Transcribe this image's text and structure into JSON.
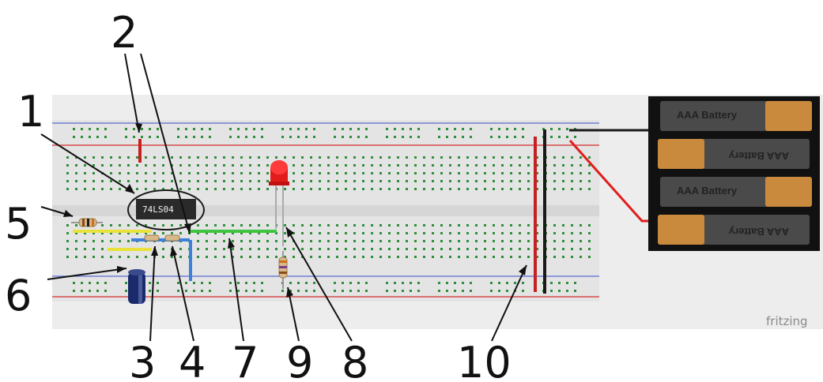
{
  "callouts": [
    {
      "id": "1",
      "label": "1"
    },
    {
      "id": "2",
      "label": "2"
    },
    {
      "id": "3",
      "label": "3"
    },
    {
      "id": "4",
      "label": "4"
    },
    {
      "id": "5",
      "label": "5"
    },
    {
      "id": "6",
      "label": "6"
    },
    {
      "id": "7",
      "label": "7"
    },
    {
      "id": "8",
      "label": "8"
    },
    {
      "id": "9",
      "label": "9"
    },
    {
      "id": "10",
      "label": "10"
    }
  ],
  "chip": {
    "label": "74LS04"
  },
  "batteries": [
    {
      "label": "AAA Battery"
    },
    {
      "label": "AAA Battery"
    },
    {
      "label": "AAA Battery"
    },
    {
      "label": "AAA Battery"
    }
  ],
  "watermark": "fritzing",
  "colors": {
    "board": "#e8e8e8",
    "rail_red": "#d64a4a",
    "rail_blue": "#6f7fd6",
    "hole": "#2f8f3a",
    "wire_red": "#c62020",
    "wire_black": "#1a1a1a",
    "wire_yellow": "#e8e23a",
    "wire_green": "#3ec43e",
    "wire_blue": "#3f7fdc",
    "led": "#e21b1b",
    "capacitor": "#1a2a6a",
    "battery_holder": "#111111",
    "battery_copper": "#c98a3e"
  }
}
